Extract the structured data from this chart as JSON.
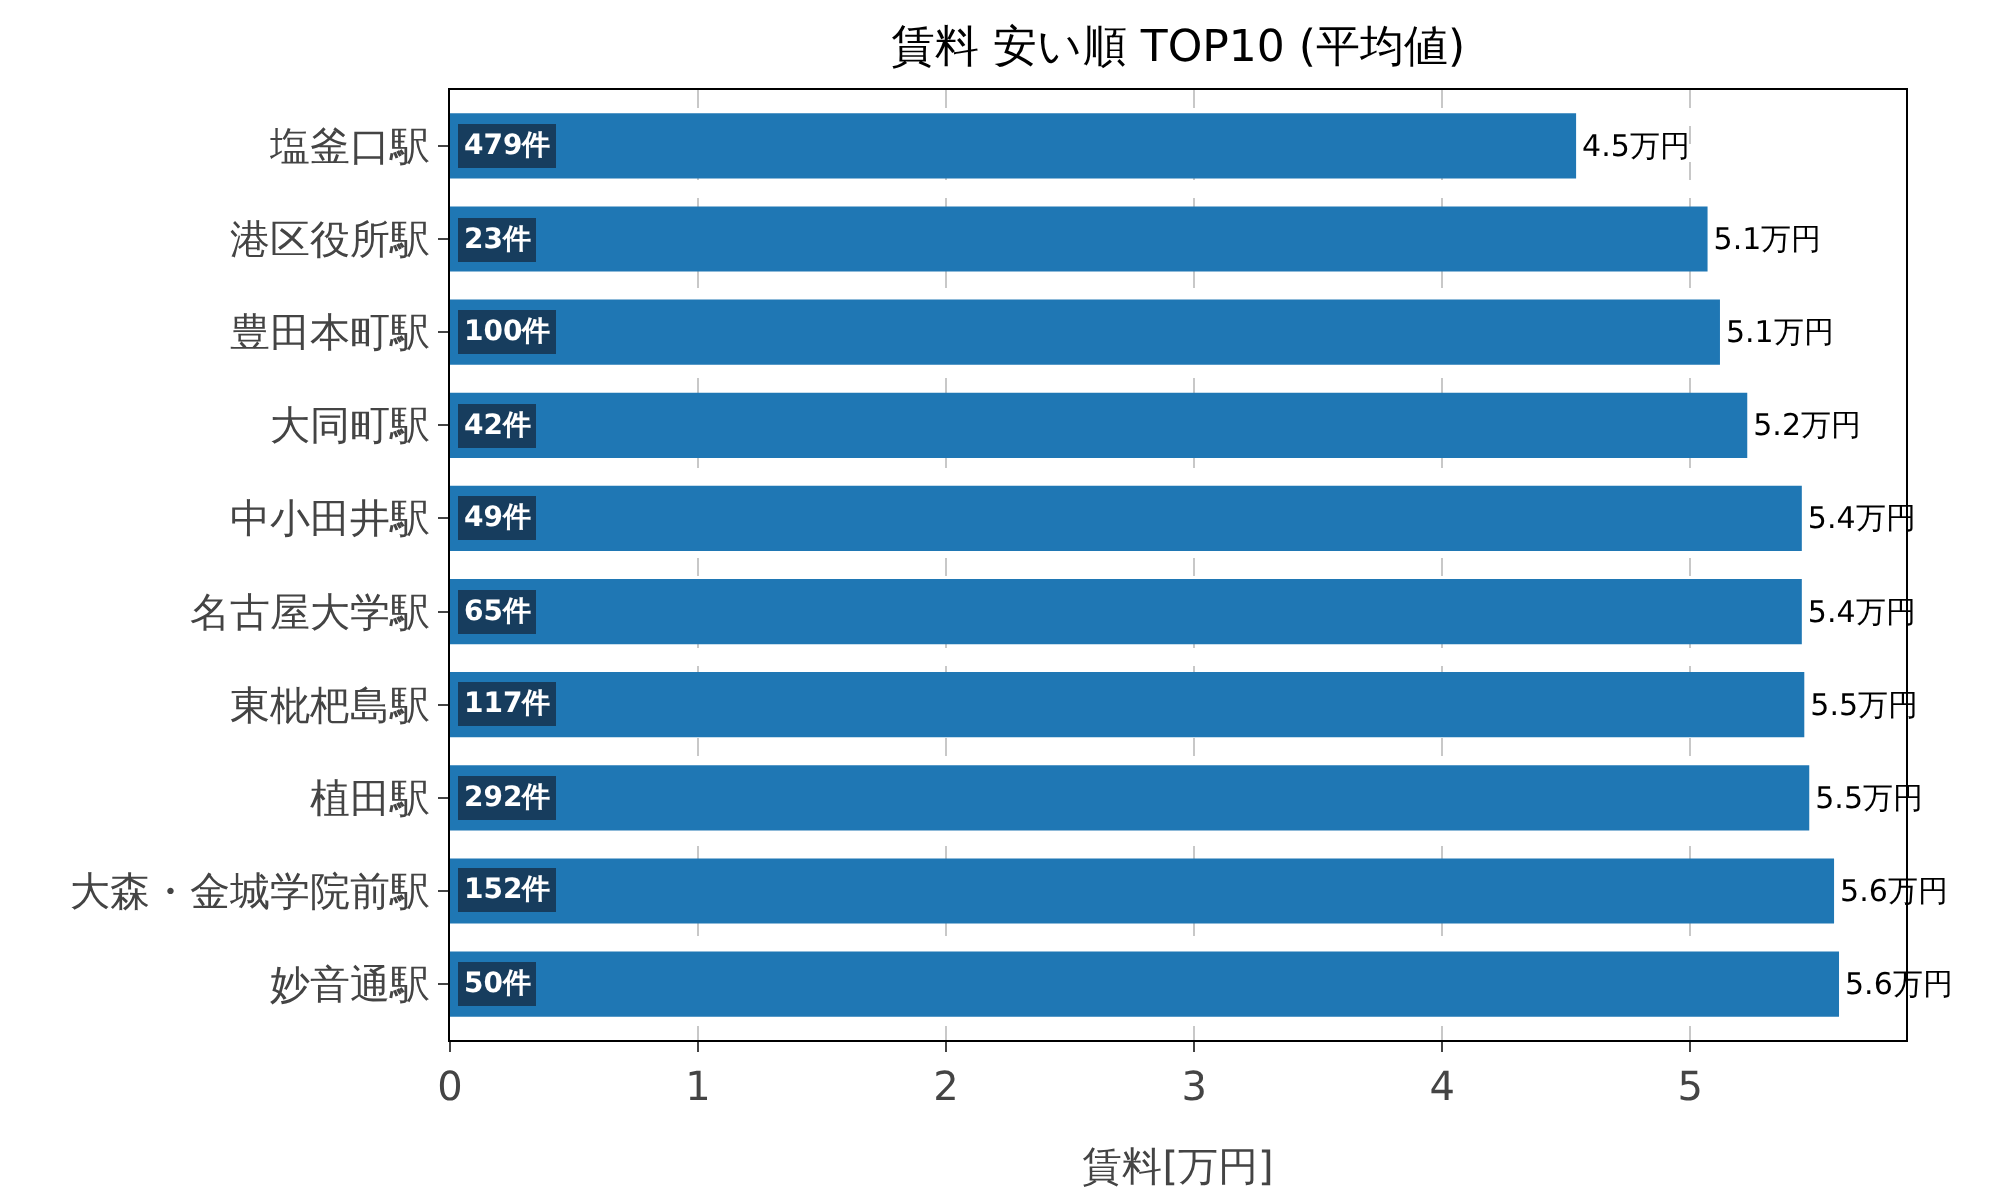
{
  "chart_data": {
    "type": "bar",
    "orientation": "horizontal",
    "title": "賃料 安い順 TOP10 (平均値)",
    "xlabel": "賃料[万円]",
    "categories": [
      "塩釜口駅",
      "港区役所駅",
      "豊田本町駅",
      "大同町駅",
      "中小田井駅",
      "名古屋大学駅",
      "東枇杷島駅",
      "植田駅",
      "大森・金城学院前駅",
      "妙音通駅"
    ],
    "values": [
      4.54,
      5.07,
      5.12,
      5.23,
      5.45,
      5.45,
      5.46,
      5.48,
      5.58,
      5.6
    ],
    "value_labels": [
      "4.5万円",
      "5.1万円",
      "5.1万円",
      "5.2万円",
      "5.4万円",
      "5.4万円",
      "5.5万円",
      "5.5万円",
      "5.6万円",
      "5.6万円"
    ],
    "color": "#1f77b4",
    "xlim": [
      0,
      5.87
    ],
    "xticks": [
      0,
      1,
      2,
      3,
      4,
      5
    ],
    "grid": "x",
    "annotations": [
      {
        "text": "479件",
        "y": "塩釜口駅"
      },
      {
        "text": "23件",
        "y": "港区役所駅"
      },
      {
        "text": "100件",
        "y": "豊田本町駅"
      },
      {
        "text": "42件",
        "y": "大同町駅"
      },
      {
        "text": "49件",
        "y": "中小田井駅"
      },
      {
        "text": "65件",
        "y": "名古屋大学駅"
      },
      {
        "text": "117件",
        "y": "東枇杷島駅"
      },
      {
        "text": "292件",
        "y": "植田駅"
      },
      {
        "text": "152件",
        "y": "大森・金城学院前駅"
      },
      {
        "text": "50件",
        "y": "妙音通駅"
      }
    ]
  }
}
